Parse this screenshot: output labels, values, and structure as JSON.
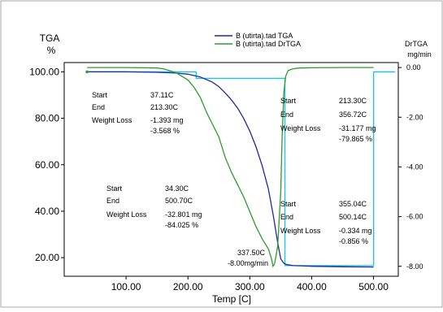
{
  "chart_data": {
    "type": "line",
    "xlabel": "Temp [C]",
    "ylabel_left": "TGA",
    "yunit_left": "%",
    "ylabel_right": "DrTGA",
    "yunit_right": "mg/min",
    "xlim": [
      0,
      540
    ],
    "ylim_left": [
      12,
      104
    ],
    "ylim_right": [
      -8.4,
      0.2
    ],
    "x_ticks": [
      "100.00",
      "200.00",
      "300.00",
      "400.00",
      "500.00"
    ],
    "y_left_ticks": [
      "100.00",
      "80.00",
      "60.00",
      "40.00",
      "20.00"
    ],
    "y_right_ticks": [
      "0.00",
      "-2.00",
      "-4.00",
      "-6.00",
      "-8.00"
    ],
    "grid": false,
    "legend_position": "top-center",
    "colors": {
      "tga": "#1f2a9a",
      "drtga": "#2e9a2e",
      "cursor": "#19c3e6"
    },
    "series": [
      {
        "name": "B (utirta).tad  TGA",
        "axis": "left",
        "x": [
          37,
          100,
          150,
          180,
          200,
          220,
          240,
          250,
          260,
          270,
          280,
          290,
          300,
          310,
          320,
          330,
          338,
          345,
          350,
          355,
          360,
          370,
          400,
          450,
          500
        ],
        "y": [
          100.0,
          100.0,
          99.8,
          99.5,
          99.0,
          97.8,
          95.5,
          93.6,
          91.0,
          88.0,
          84.5,
          80.0,
          74.5,
          67.8,
          59.5,
          49.5,
          38.0,
          26.5,
          19.5,
          17.6,
          17.0,
          16.6,
          16.3,
          16.1,
          16.0
        ]
      },
      {
        "name": "B (utirta).tad  DrTGA",
        "axis": "right",
        "x": [
          37,
          100,
          150,
          160,
          180,
          200,
          210,
          220,
          230,
          240,
          250,
          260,
          270,
          280,
          290,
          300,
          310,
          320,
          330,
          335,
          337.5,
          340,
          345,
          350,
          352,
          355,
          358,
          362,
          370,
          380,
          400,
          450,
          500
        ],
        "y": [
          0.0,
          0.0,
          -0.02,
          -0.05,
          -0.2,
          -0.5,
          -0.8,
          -1.2,
          -1.8,
          -2.3,
          -2.8,
          -3.6,
          -4.2,
          -4.7,
          -5.2,
          -5.8,
          -6.4,
          -6.9,
          -7.3,
          -7.7,
          -8.0,
          -7.9,
          -7.2,
          -5.0,
          -3.0,
          -1.0,
          -0.35,
          -0.12,
          -0.05,
          -0.02,
          -0.01,
          0.0,
          0.0
        ]
      }
    ],
    "annotations": [
      {
        "start_label": "Start",
        "start_value": "37.11C",
        "end_label": "End",
        "end_value": "213.30C",
        "loss_label": "Weight Loss",
        "loss_mg": "-1.393 mg",
        "loss_pct": "-3.568 %"
      },
      {
        "start_label": "Start",
        "start_value": "34.30C",
        "end_label": "End",
        "end_value": "500.70C",
        "loss_label": "Weight Loss",
        "loss_mg": "-32.801 mg",
        "loss_pct": "-84.025 %"
      },
      {
        "start_label": "Start",
        "start_value": "213.30C",
        "end_label": "End",
        "end_value": "356.72C",
        "loss_label": "Weight Loss",
        "loss_mg": "-31.177 mg",
        "loss_pct": "-79.865 %"
      },
      {
        "start_label": "Start",
        "start_value": "355.04C",
        "end_label": "End",
        "end_value": "500.14C",
        "loss_label": "Weight Loss",
        "loss_mg": "-0.334 mg",
        "loss_pct": "-0.856 %"
      }
    ],
    "peak": {
      "temp": "337.50C",
      "rate": "-8.00mg/min"
    },
    "cursor_marks": [
      213.3,
      356.72,
      500.14
    ]
  }
}
